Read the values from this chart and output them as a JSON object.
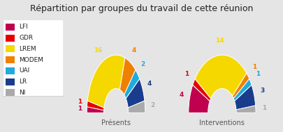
{
  "title": "Répartition par groupes du travail de cette réunion",
  "groups": [
    "LFI",
    "GDR",
    "LREM",
    "MODEM",
    "UAI",
    "LR",
    "NI"
  ],
  "colors": [
    "#c0004e",
    "#e80000",
    "#f5d800",
    "#f08000",
    "#22aadd",
    "#1a3c8c",
    "#aaaaaa"
  ],
  "presentes": [
    1,
    1,
    16,
    4,
    2,
    4,
    2
  ],
  "interventions": [
    4,
    1,
    14,
    1,
    1,
    3,
    1
  ],
  "label1": "Présents",
  "label2": "Interventions",
  "bg_color": "#e5e5e5",
  "legend_bg": "#ffffff",
  "title_fontsize": 9,
  "legend_fontsize": 6.5,
  "label_fontsize": 6.5,
  "subtitle_fontsize": 7
}
